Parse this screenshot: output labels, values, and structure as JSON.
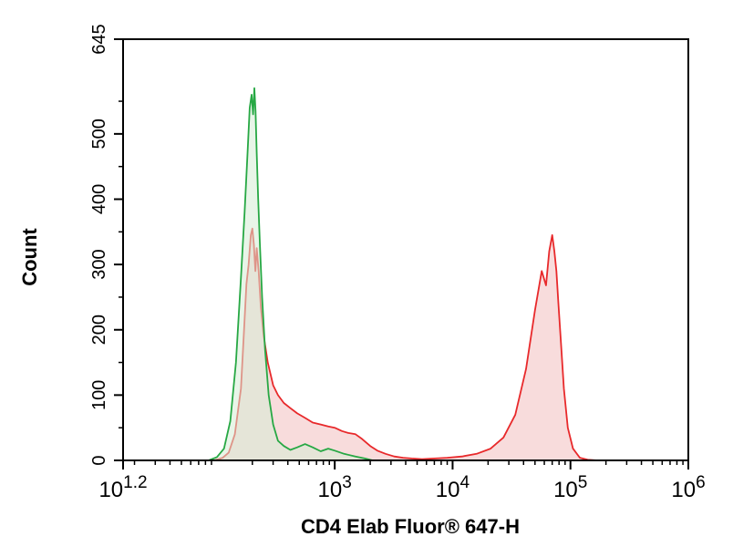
{
  "chart_data": {
    "type": "area",
    "xlabel": "CD4 Elab Fluor® 647-H",
    "ylabel": "Count",
    "x_scale": "log",
    "xlim": [
      16,
      1000000
    ],
    "ylim": [
      0,
      645
    ],
    "x_ticks": [
      {
        "value": 16,
        "base": "10",
        "exp": "1.2"
      },
      {
        "value": 1000,
        "base": "10",
        "exp": "3"
      },
      {
        "value": 10000,
        "base": "10",
        "exp": "4"
      },
      {
        "value": 100000,
        "base": "10",
        "exp": "5"
      },
      {
        "value": 1000000,
        "base": "10",
        "exp": "6"
      }
    ],
    "y_ticks": [
      {
        "value": 0,
        "label": "0"
      },
      {
        "value": 100,
        "label": "100"
      },
      {
        "value": 200,
        "label": "200"
      },
      {
        "value": 300,
        "label": "300"
      },
      {
        "value": 400,
        "label": "400"
      },
      {
        "value": 500,
        "label": "500"
      },
      {
        "value": 645,
        "label": "645"
      }
    ],
    "grid": false,
    "series": [
      {
        "stroke": "#e8292b",
        "fill": "#f6d0d0",
        "x": [
          95,
          112,
          126,
          142,
          160,
          170,
          178,
          186,
          194,
          200,
          206,
          212,
          218,
          226,
          236,
          250,
          270,
          300,
          330,
          370,
          420,
          480,
          560,
          650,
          760,
          880,
          1000,
          1150,
          1300,
          1500,
          1700,
          2000,
          2300,
          2700,
          3200,
          3800,
          4500,
          5500,
          7000,
          9000,
          12000,
          16000,
          21000,
          27000,
          34000,
          42000,
          50000,
          57000,
          62000,
          66000,
          70000,
          73000,
          76000,
          79000,
          83000,
          88000,
          95000,
          105000,
          120000,
          140000,
          170000
        ],
        "y": [
          0,
          4,
          12,
          40,
          110,
          200,
          270,
          300,
          345,
          355,
          330,
          290,
          325,
          290,
          235,
          190,
          150,
          115,
          100,
          88,
          80,
          72,
          65,
          58,
          55,
          52,
          50,
          45,
          42,
          40,
          33,
          22,
          15,
          10,
          6,
          4,
          3,
          2,
          3,
          4,
          6,
          10,
          18,
          35,
          70,
          140,
          230,
          290,
          268,
          320,
          345,
          320,
          290,
          240,
          180,
          110,
          50,
          18,
          4,
          1,
          0
        ]
      },
      {
        "stroke": "#27a844",
        "fill": "#d6ecd6",
        "x": [
          85,
          100,
          115,
          130,
          145,
          160,
          172,
          182,
          190,
          197,
          203,
          208,
          213,
          218,
          224,
          232,
          242,
          256,
          275,
          300,
          330,
          370,
          420,
          480,
          560,
          650,
          760,
          880,
          1000,
          1200,
          1500,
          1800,
          2100
        ],
        "y": [
          0,
          5,
          18,
          60,
          150,
          280,
          380,
          470,
          540,
          560,
          530,
          570,
          535,
          470,
          400,
          330,
          250,
          170,
          100,
          55,
          30,
          22,
          16,
          20,
          25,
          20,
          14,
          18,
          15,
          10,
          6,
          3,
          0
        ]
      }
    ]
  }
}
